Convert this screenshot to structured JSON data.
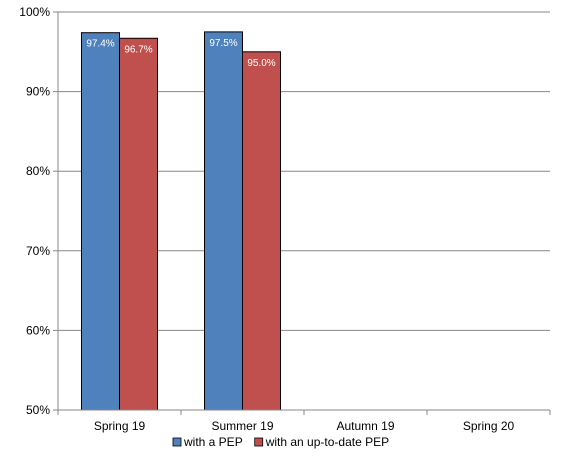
{
  "chart_data": {
    "type": "bar",
    "title": "",
    "xlabel": "",
    "ylabel": "",
    "categories": [
      "Spring 19",
      "Summer 19",
      "Autumn 19",
      "Spring 20"
    ],
    "series": [
      {
        "name": "with a PEP",
        "values": [
          97.4,
          97.5,
          null,
          null
        ],
        "labels": [
          "97.4%",
          "97.5%",
          "",
          ""
        ],
        "color": "#4f81bd"
      },
      {
        "name": "with an up-to-date PEP",
        "values": [
          96.7,
          95.0,
          null,
          null
        ],
        "labels": [
          "96.7%",
          "95.0%",
          "",
          ""
        ],
        "color": "#c0504d"
      }
    ],
    "ylim": [
      50,
      100
    ],
    "yticks": [
      50,
      60,
      70,
      80,
      90,
      100
    ],
    "ytick_labels": [
      "50%",
      "60%",
      "70%",
      "80%",
      "90%",
      "100%"
    ],
    "grid": true,
    "legend_position": "bottom"
  }
}
